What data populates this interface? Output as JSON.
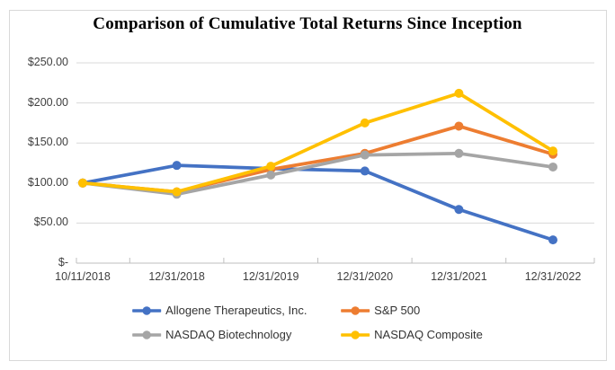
{
  "chart": {
    "title": "Comparison of Cumulative Total Returns Since Inception"
  },
  "chart_data": {
    "type": "line",
    "title": "Comparison of Cumulative Total Returns Since Inception",
    "categories": [
      "10/11/2018",
      "12/31/2018",
      "12/31/2019",
      "12/31/2020",
      "12/31/2021",
      "12/31/2022"
    ],
    "series": [
      {
        "name": "Allogene Therapeutics, Inc.",
        "color": "#4472C4",
        "values": [
          100,
          122,
          118,
          115,
          67,
          29
        ]
      },
      {
        "name": "S&P 500",
        "color": "#ED7D31",
        "values": [
          100,
          89,
          117,
          137,
          171,
          136
        ]
      },
      {
        "name": "NASDAQ Biotechnology",
        "color": "#A5A5A5",
        "values": [
          100,
          86,
          110,
          135,
          137,
          120
        ]
      },
      {
        "name": "NASDAQ Composite",
        "color": "#FFC000",
        "values": [
          100,
          89,
          121,
          175,
          212,
          140
        ]
      }
    ],
    "y_axis": {
      "range": [
        0,
        250
      ],
      "tick_step": 50,
      "ticks": [
        0,
        50,
        100,
        150,
        200,
        250
      ],
      "tick_labels": [
        "$-",
        "$50.00",
        "$100.00",
        "$150.00",
        "$200.00",
        "$250.00"
      ]
    },
    "grid": true,
    "legend_position": "bottom",
    "marker_style": "circle"
  },
  "colors": {
    "gridline": "#D9D9D9",
    "axis_line": "#BFBFBF",
    "axis_text": "#404040",
    "frame_border": "#D9D9D9",
    "title_text": "#000000"
  }
}
